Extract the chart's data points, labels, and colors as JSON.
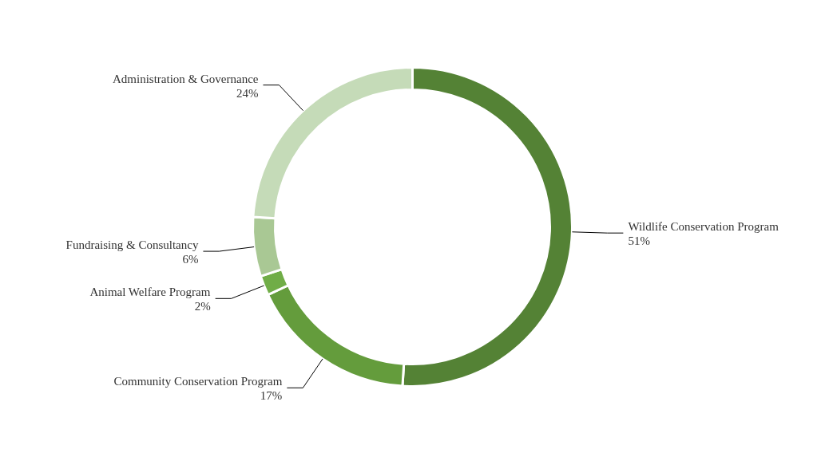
{
  "chart_data": {
    "type": "donut",
    "categories": [
      "Wildlife Conservation Program",
      "Community Conservation Program",
      "Animal Welfare Program",
      "Fundraising & Consultancy",
      "Administration & Governance"
    ],
    "values": [
      51,
      17,
      2,
      6,
      24
    ],
    "value_labels": [
      "51%",
      "17%",
      "2%",
      "6%",
      "24%"
    ],
    "colors": [
      "#548235",
      "#649c3c",
      "#70ad47",
      "#a9c894",
      "#c5dbb8"
    ]
  }
}
